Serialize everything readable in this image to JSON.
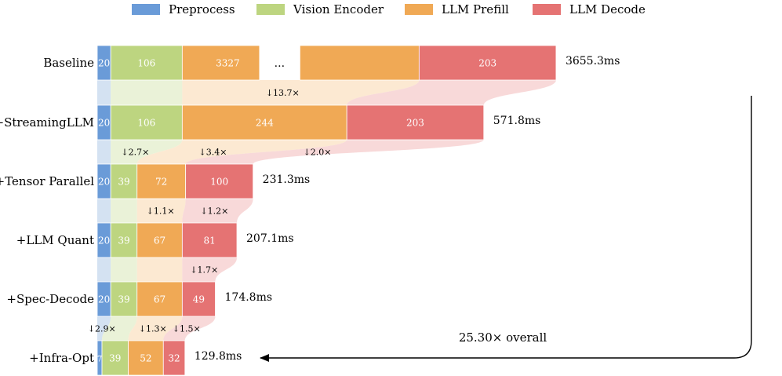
{
  "chart_data": {
    "type": "bar",
    "subtype": "stacked-horizontal-waterfall",
    "title": "",
    "xlabel": "",
    "ylabel": "",
    "legend": {
      "placement": "top",
      "entries": [
        {
          "name": "Preprocess",
          "color": "#6a9bd8"
        },
        {
          "name": "Vision Encoder",
          "color": "#bdd580"
        },
        {
          "name": "LLM Prefill",
          "color": "#f0a955"
        },
        {
          "name": "LLM Decode",
          "color": "#e57373"
        }
      ]
    },
    "categories": [
      "Baseline",
      "+StreamingLLM",
      "+Tensor Parallel",
      "+LLM Quant",
      "+Spec-Decode",
      "+Infra-Opt"
    ],
    "series": [
      {
        "name": "Preprocess",
        "values": [
          20,
          20,
          20,
          20,
          20,
          7
        ]
      },
      {
        "name": "Vision Encoder",
        "values": [
          106,
          106,
          39,
          39,
          39,
          39
        ]
      },
      {
        "name": "LLM Prefill",
        "values": [
          3327,
          244,
          72,
          67,
          67,
          52
        ]
      },
      {
        "name": "LLM Decode",
        "values": [
          203,
          203,
          100,
          81,
          49,
          32
        ]
      }
    ],
    "totals": [
      "3655.3ms",
      "571.8ms",
      "231.3ms",
      "207.1ms",
      "174.8ms",
      "129.8ms"
    ],
    "truncation_label": "...",
    "speedups": [
      {
        "row": 0,
        "segment": 2,
        "label": "↓13.7×"
      },
      {
        "row": 1,
        "segment": 1,
        "label": "↓2.7×"
      },
      {
        "row": 1,
        "segment": 2,
        "label": "↓3.4×"
      },
      {
        "row": 1,
        "segment": 3,
        "label": "↓2.0×"
      },
      {
        "row": 2,
        "segment": 2,
        "label": "↓1.1×"
      },
      {
        "row": 2,
        "segment": 3,
        "label": "↓1.2×"
      },
      {
        "row": 3,
        "segment": 3,
        "label": "↓1.7×"
      },
      {
        "row": 4,
        "segment": 0,
        "label": "↓2.9×"
      },
      {
        "row": 4,
        "segment": 2,
        "label": "↓1.3×"
      },
      {
        "row": 4,
        "segment": 3,
        "label": "↓1.5×"
      }
    ],
    "overall_label": "25.30× overall"
  }
}
